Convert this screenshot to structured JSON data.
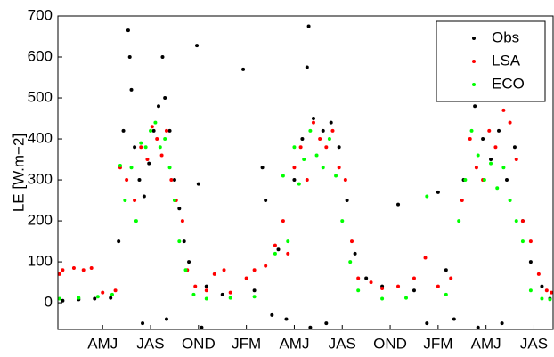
{
  "chart_data": {
    "type": "scatter",
    "y_label": "LE [W.m−2]",
    "xlim": [
      0.2,
      31.2
    ],
    "ylim": [
      -65,
      700
    ],
    "xticks": [
      {
        "value": 3,
        "label": "AMJ"
      },
      {
        "value": 6,
        "label": "JAS"
      },
      {
        "value": 9,
        "label": "OND"
      },
      {
        "value": 12,
        "label": "JFM"
      },
      {
        "value": 15,
        "label": "AMJ"
      },
      {
        "value": 18,
        "label": "JAS"
      },
      {
        "value": 21,
        "label": "OND"
      },
      {
        "value": 24,
        "label": "JFM"
      },
      {
        "value": 27,
        "label": "AMJ"
      },
      {
        "value": 30,
        "label": "JAS"
      },
      {
        "value": 33,
        "label": "OND"
      }
    ],
    "yticks": [
      0,
      100,
      200,
      300,
      400,
      500,
      600,
      700
    ],
    "legend": "upper right",
    "series": [
      {
        "name": "Obs",
        "color": "#000000",
        "x": [
          0.5,
          1.5,
          2.5,
          3.5,
          4.0,
          4.3,
          4.6,
          4.7,
          4.8,
          5.0,
          5.3,
          5.6,
          5.9,
          6.2,
          6.5,
          6.75,
          6.9,
          7.2,
          7.5,
          7.8,
          8.1,
          8.4,
          8.9,
          9.0,
          9.2,
          9.5,
          10.5,
          11.8,
          12.5,
          13.0,
          13.2,
          13.6,
          14.0,
          14.5,
          15.0,
          15.5,
          15.8,
          15.9,
          16.2,
          16.8,
          17.3,
          17.8,
          18.3,
          18.8,
          19.5,
          20.5,
          21.5,
          22.5,
          23.3,
          24.0,
          24.5,
          25.0,
          25.6,
          26.0,
          26.3,
          26.8,
          27.3,
          27.8,
          28.3,
          28.8,
          29.3,
          29.8,
          30.5,
          31.0,
          5.5,
          7.0,
          16.0,
          17.0,
          26.5,
          28.0
        ],
        "values": [
          5,
          8,
          10,
          12,
          150,
          420,
          665,
          600,
          520,
          380,
          300,
          260,
          340,
          420,
          480,
          600,
          500,
          420,
          300,
          230,
          150,
          100,
          628,
          290,
          -60,
          40,
          20,
          570,
          30,
          330,
          250,
          -30,
          130,
          -40,
          300,
          400,
          575,
          675,
          450,
          420,
          440,
          380,
          250,
          120,
          60,
          40,
          240,
          30,
          -50,
          270,
          80,
          -40,
          300,
          680,
          480,
          400,
          350,
          420,
          300,
          380,
          200,
          100,
          40,
          10,
          -50,
          -40,
          -60,
          -50,
          -60,
          -50
        ]
      },
      {
        "name": "LSA",
        "color": "#ff0000",
        "x": [
          0.3,
          0.5,
          1.2,
          1.8,
          2.3,
          3.0,
          3.8,
          4.1,
          4.5,
          5.0,
          5.4,
          5.8,
          6.1,
          6.4,
          6.7,
          7.0,
          7.3,
          7.6,
          8.0,
          8.3,
          8.8,
          9.5,
          10.0,
          10.6,
          11.0,
          12.0,
          12.5,
          13.2,
          13.8,
          14.3,
          14.6,
          15.0,
          15.4,
          15.8,
          16.2,
          16.6,
          17.0,
          17.4,
          17.8,
          18.2,
          18.6,
          19.0,
          19.8,
          20.5,
          21.5,
          22.5,
          23.2,
          24.0,
          24.8,
          25.5,
          26.0,
          26.4,
          26.8,
          27.2,
          27.6,
          28.1,
          28.5,
          28.9,
          29.3,
          29.8,
          30.3,
          30.8,
          31.1
        ],
        "values": [
          70,
          80,
          85,
          80,
          85,
          25,
          30,
          330,
          300,
          250,
          380,
          350,
          430,
          400,
          360,
          420,
          300,
          250,
          200,
          80,
          40,
          30,
          70,
          80,
          25,
          60,
          80,
          90,
          140,
          200,
          120,
          330,
          380,
          300,
          440,
          400,
          380,
          420,
          330,
          300,
          150,
          60,
          50,
          35,
          40,
          60,
          110,
          40,
          60,
          250,
          400,
          330,
          300,
          420,
          380,
          470,
          440,
          350,
          200,
          150,
          70,
          30,
          25
        ]
      },
      {
        "name": "ECO",
        "color": "#00ff00",
        "x": [
          0.3,
          1.5,
          2.7,
          3.6,
          4.1,
          4.4,
          4.8,
          5.1,
          5.4,
          5.7,
          6.0,
          6.3,
          6.6,
          6.9,
          7.2,
          7.5,
          7.8,
          8.2,
          8.7,
          9.5,
          11.0,
          12.5,
          13.8,
          14.3,
          14.6,
          15.0,
          15.3,
          15.6,
          16.0,
          16.4,
          16.8,
          17.2,
          17.6,
          18.0,
          18.5,
          19.0,
          20.5,
          22.0,
          23.3,
          24.5,
          25.3,
          25.7,
          26.1,
          26.5,
          26.9,
          27.3,
          27.7,
          28.1,
          28.5,
          28.9,
          29.3,
          29.8,
          30.5,
          31.0
        ],
        "values": [
          10,
          12,
          15,
          20,
          335,
          250,
          330,
          200,
          390,
          380,
          420,
          440,
          380,
          400,
          330,
          250,
          150,
          80,
          20,
          10,
          12,
          15,
          120,
          310,
          150,
          380,
          290,
          350,
          420,
          360,
          330,
          400,
          310,
          200,
          100,
          30,
          10,
          12,
          260,
          20,
          200,
          300,
          420,
          360,
          300,
          340,
          280,
          330,
          250,
          200,
          150,
          30,
          10,
          8
        ]
      }
    ]
  }
}
